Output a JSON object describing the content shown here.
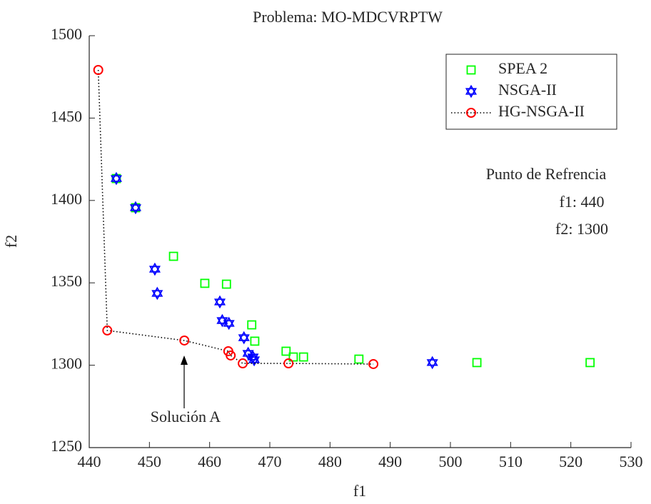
{
  "chart_data": {
    "type": "scatter",
    "title": "Problema: MO-MDCVRPTW",
    "x_label": "f1",
    "y_label": "f2",
    "xlim": [
      440,
      530
    ],
    "xticks": [
      440,
      450,
      460,
      470,
      480,
      490,
      500,
      510,
      520,
      530
    ],
    "ylim": [
      1250,
      1500
    ],
    "yticks": [
      1250,
      1300,
      1350,
      1400,
      1450,
      1500
    ],
    "legend": "upper right",
    "annotations": {
      "reference": [
        "Punto de Refrencia",
        "f1:  440",
        "f2: 1300"
      ],
      "arrow_label": "Solución A"
    },
    "series": [
      {
        "name": "SPEA 2",
        "color": "#00ff00",
        "marker": "square",
        "x": [
          444.5,
          447.7,
          454.0,
          459.2,
          462.8,
          467.0,
          467.5,
          472.7,
          473.9,
          475.6,
          484.8,
          504.4,
          523.2
        ],
        "values": [
          1413.3,
          1395.6,
          1366.1,
          1349.7,
          1349.2,
          1324.5,
          1314.6,
          1308.5,
          1305.0,
          1305.0,
          1303.7,
          1301.6,
          1301.6
        ]
      },
      {
        "name": "NSGA-II",
        "color": "#0000ff",
        "marker": "hexagram",
        "x": [
          444.5,
          447.7,
          450.9,
          451.3,
          461.7,
          462.1,
          463.2,
          465.7,
          466.4,
          467.2,
          467.4,
          497.0
        ],
        "values": [
          1413.3,
          1395.6,
          1358.3,
          1343.6,
          1338.4,
          1327.1,
          1325.4,
          1316.7,
          1307.2,
          1305.0,
          1303.3,
          1301.6
        ]
      },
      {
        "name": "HG-NSGA-II",
        "color": "#ff0000",
        "marker": "circle",
        "line_style": "dotted",
        "x": [
          441.5,
          443.0,
          455.8,
          463.1,
          463.5,
          465.5,
          473.1,
          487.2
        ],
        "values": [
          1479.2,
          1321.1,
          1315.0,
          1308.5,
          1305.9,
          1301.1,
          1301.1,
          1300.7
        ]
      }
    ]
  }
}
